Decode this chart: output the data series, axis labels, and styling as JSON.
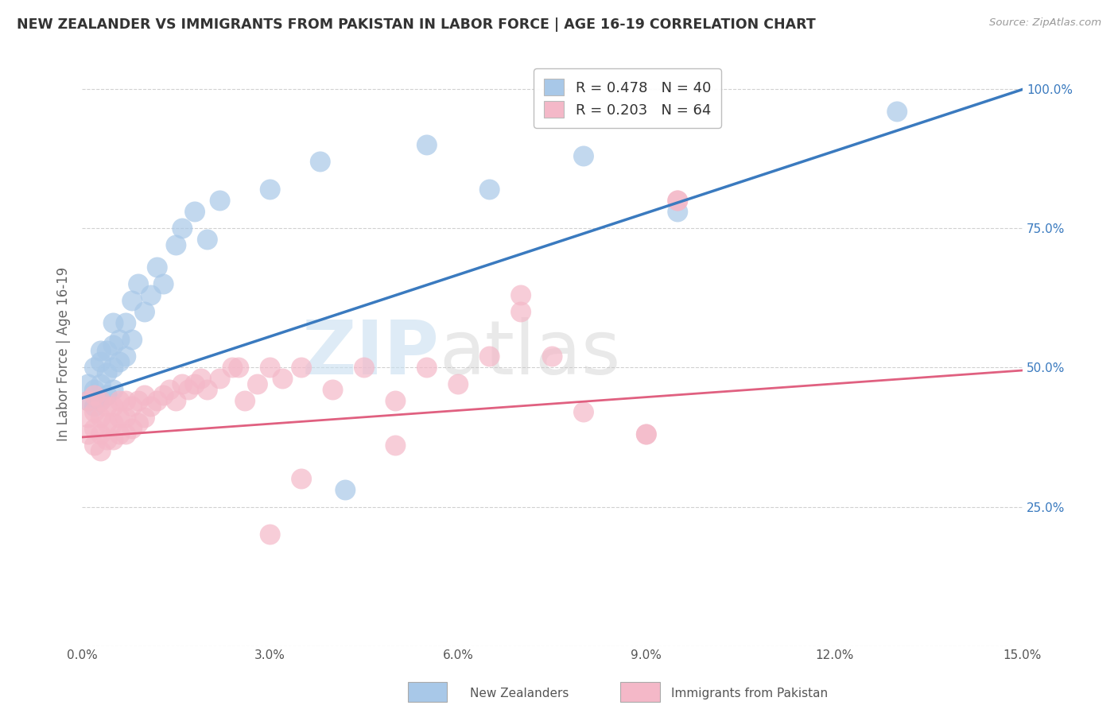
{
  "title": "NEW ZEALANDER VS IMMIGRANTS FROM PAKISTAN IN LABOR FORCE | AGE 16-19 CORRELATION CHART",
  "source": "Source: ZipAtlas.com",
  "ylabel": "In Labor Force | Age 16-19",
  "xlim": [
    0.0,
    0.15
  ],
  "ylim": [
    0.0,
    1.05
  ],
  "xticks": [
    0.0,
    0.03,
    0.06,
    0.09,
    0.12,
    0.15
  ],
  "xtick_labels": [
    "0.0%",
    "3.0%",
    "6.0%",
    "9.0%",
    "12.0%",
    "15.0%"
  ],
  "yticks": [
    0.0,
    0.25,
    0.5,
    0.75,
    1.0
  ],
  "ytick_labels": [
    "",
    "25.0%",
    "50.0%",
    "75.0%",
    "100.0%"
  ],
  "blue_R": 0.478,
  "blue_N": 40,
  "pink_R": 0.203,
  "pink_N": 64,
  "blue_color": "#a8c8e8",
  "pink_color": "#f4b8c8",
  "blue_line_color": "#3a7abf",
  "pink_line_color": "#e06080",
  "legend_items": [
    "New Zealanders",
    "Immigrants from Pakistan"
  ],
  "blue_line_x0": 0.0,
  "blue_line_y0": 0.445,
  "blue_line_x1": 0.15,
  "blue_line_y1": 1.0,
  "pink_line_x0": 0.0,
  "pink_line_y0": 0.375,
  "pink_line_x1": 0.15,
  "pink_line_y1": 0.495,
  "blue_scatter_x": [
    0.001,
    0.001,
    0.002,
    0.002,
    0.002,
    0.003,
    0.003,
    0.003,
    0.003,
    0.004,
    0.004,
    0.004,
    0.005,
    0.005,
    0.005,
    0.005,
    0.006,
    0.006,
    0.007,
    0.007,
    0.008,
    0.008,
    0.009,
    0.01,
    0.011,
    0.012,
    0.013,
    0.015,
    0.016,
    0.018,
    0.02,
    0.022,
    0.03,
    0.038,
    0.042,
    0.055,
    0.065,
    0.08,
    0.095,
    0.13
  ],
  "blue_scatter_y": [
    0.44,
    0.47,
    0.43,
    0.46,
    0.5,
    0.44,
    0.47,
    0.51,
    0.53,
    0.45,
    0.49,
    0.53,
    0.46,
    0.5,
    0.54,
    0.58,
    0.51,
    0.55,
    0.52,
    0.58,
    0.55,
    0.62,
    0.65,
    0.6,
    0.63,
    0.68,
    0.65,
    0.72,
    0.75,
    0.78,
    0.73,
    0.8,
    0.82,
    0.87,
    0.28,
    0.9,
    0.82,
    0.88,
    0.78,
    0.96
  ],
  "pink_scatter_x": [
    0.001,
    0.001,
    0.001,
    0.002,
    0.002,
    0.002,
    0.002,
    0.003,
    0.003,
    0.003,
    0.003,
    0.004,
    0.004,
    0.004,
    0.005,
    0.005,
    0.005,
    0.006,
    0.006,
    0.006,
    0.007,
    0.007,
    0.007,
    0.008,
    0.008,
    0.009,
    0.009,
    0.01,
    0.01,
    0.011,
    0.012,
    0.013,
    0.014,
    0.015,
    0.016,
    0.017,
    0.018,
    0.019,
    0.02,
    0.022,
    0.024,
    0.026,
    0.028,
    0.03,
    0.032,
    0.035,
    0.04,
    0.045,
    0.05,
    0.055,
    0.065,
    0.07,
    0.08,
    0.09,
    0.095,
    0.07,
    0.025,
    0.03,
    0.06,
    0.09,
    0.095,
    0.05,
    0.035,
    0.075
  ],
  "pink_scatter_y": [
    0.38,
    0.41,
    0.44,
    0.36,
    0.39,
    0.42,
    0.45,
    0.35,
    0.38,
    0.41,
    0.44,
    0.37,
    0.4,
    0.43,
    0.37,
    0.4,
    0.43,
    0.38,
    0.41,
    0.44,
    0.38,
    0.41,
    0.44,
    0.39,
    0.43,
    0.4,
    0.44,
    0.41,
    0.45,
    0.43,
    0.44,
    0.45,
    0.46,
    0.44,
    0.47,
    0.46,
    0.47,
    0.48,
    0.46,
    0.48,
    0.5,
    0.44,
    0.47,
    0.5,
    0.48,
    0.5,
    0.46,
    0.5,
    0.44,
    0.5,
    0.52,
    0.63,
    0.42,
    0.38,
    0.8,
    0.6,
    0.5,
    0.2,
    0.47,
    0.38,
    0.8,
    0.36,
    0.3,
    0.52
  ]
}
